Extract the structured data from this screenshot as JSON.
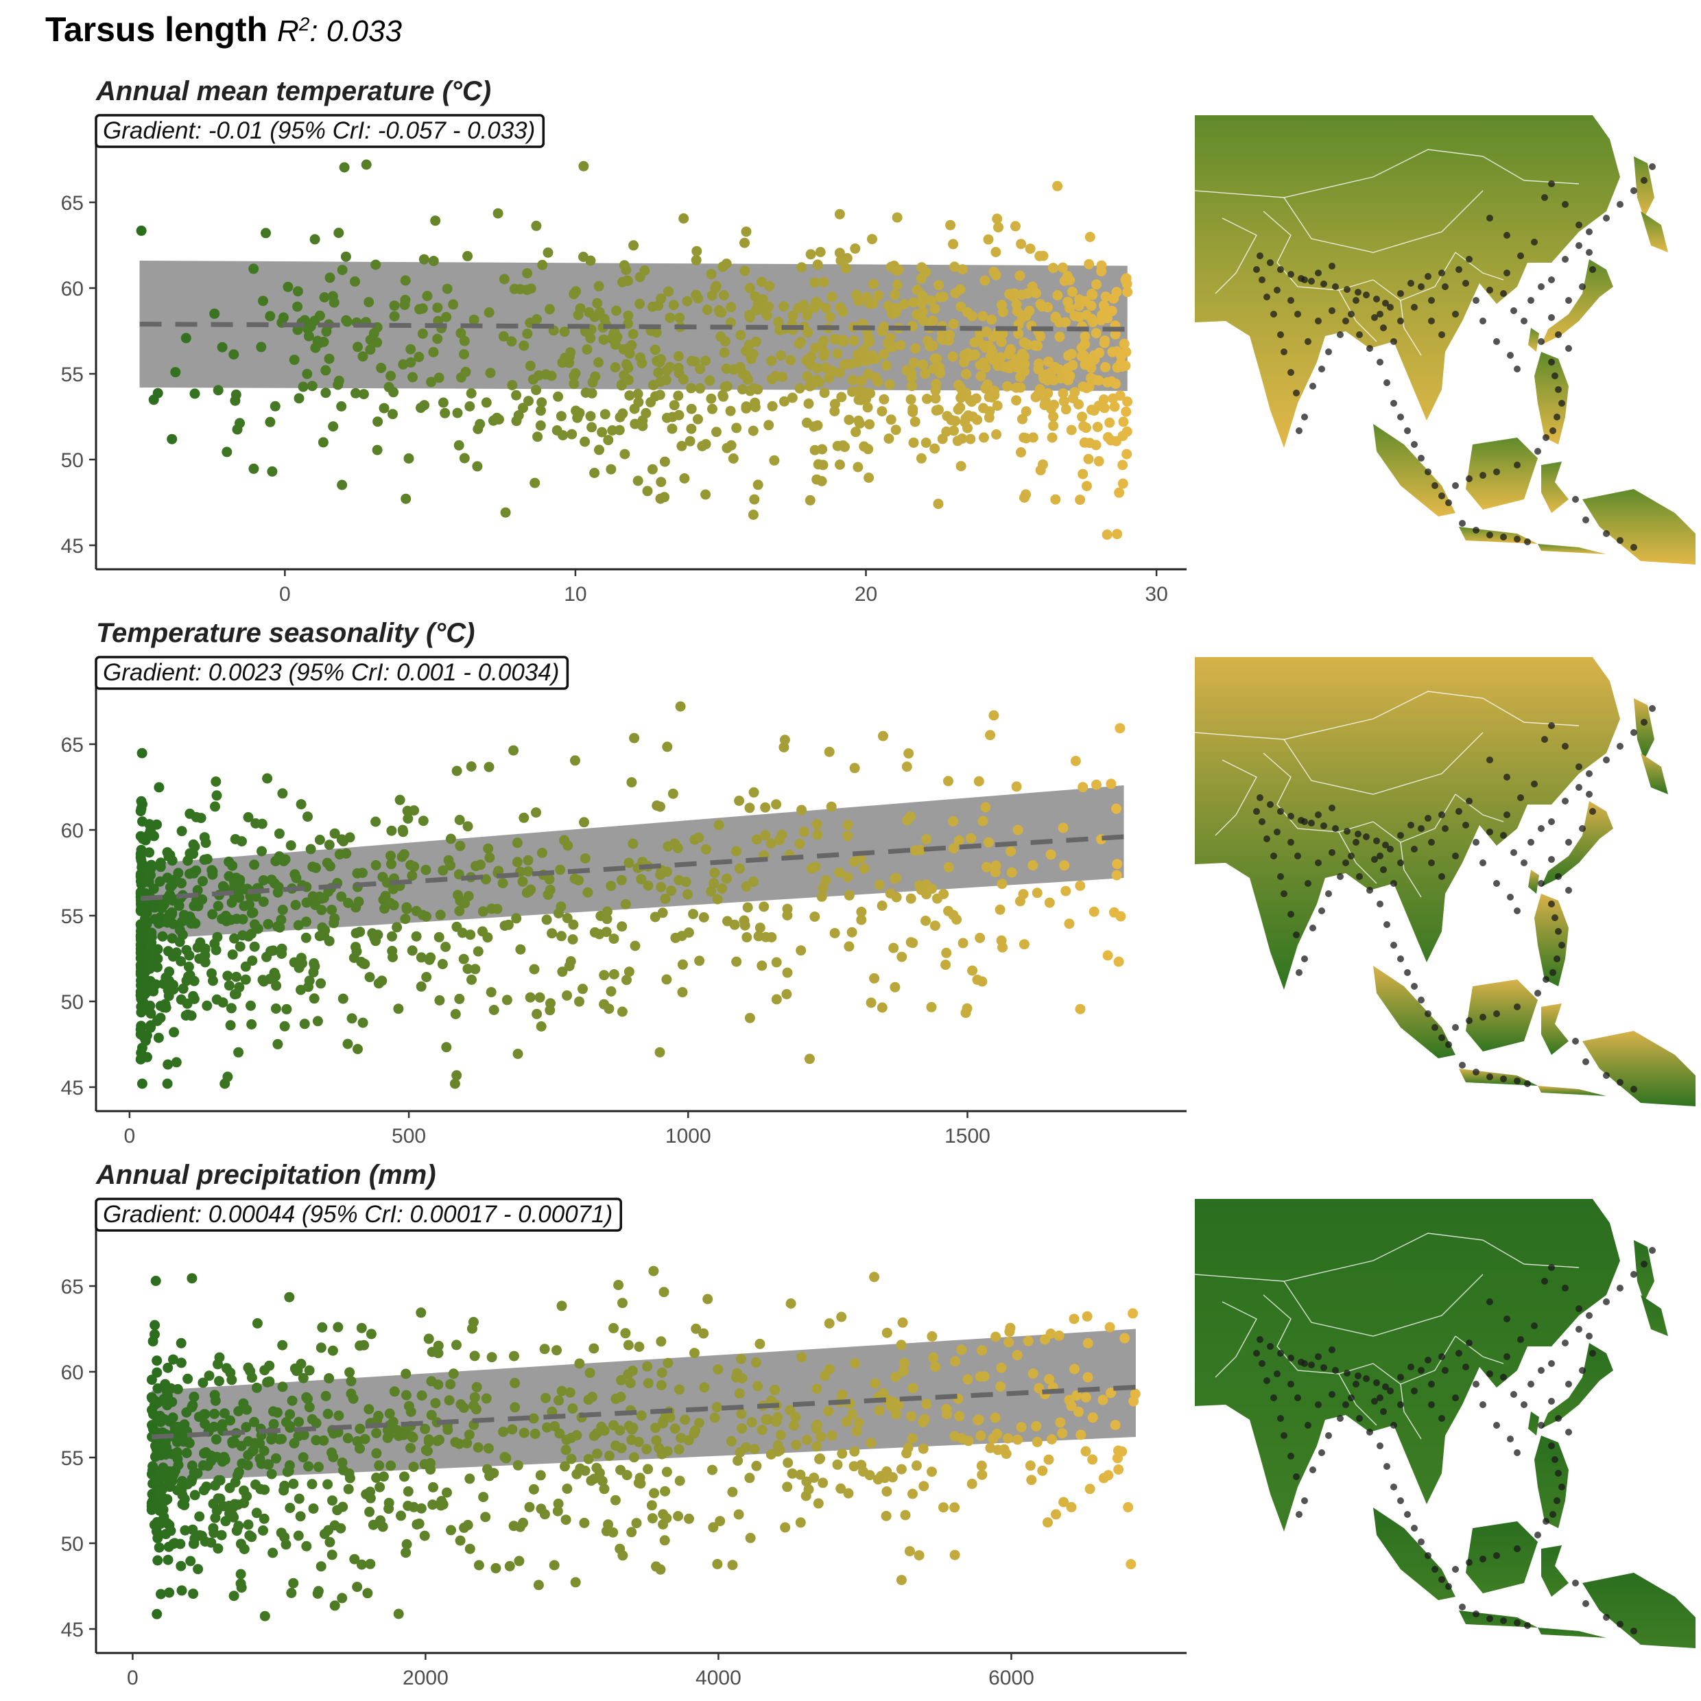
{
  "figure": {
    "title": "Tarsus length",
    "r2_label": "R",
    "r2_sup": "2",
    "r2_value": ": 0.033"
  },
  "chart_data": [
    {
      "type": "scatter",
      "title": "Annual mean temperature (°C)",
      "annotation": "Gradient: -0.01 (95% CrI: -0.057 - 0.033)",
      "xlim": [
        -6.5,
        30.8
      ],
      "ylim": [
        44,
        68
      ],
      "x_ticks": [
        0,
        10,
        20,
        30
      ],
      "y_ticks": [
        45,
        50,
        55,
        60,
        65
      ],
      "x_range": [
        -5,
        29
      ],
      "fit": {
        "x": [
          -5,
          29
        ],
        "y": [
          57.9,
          57.6
        ]
      },
      "ribbon": {
        "lower": [
          54.2,
          54.0
        ],
        "upper": [
          61.6,
          61.3
        ]
      },
      "colors": {
        "low": "#2b6e1e",
        "high": "#e6b843"
      },
      "points_n": 950,
      "points_seed": 11,
      "x_skew": 0.55,
      "y_sd": 3.6
    },
    {
      "type": "scatter",
      "title": "Temperature seasonality (°C)",
      "annotation": "Gradient: 0.0023 (95% CrI: 0.001 - 0.0034)",
      "xlim": [
        -60,
        1880
      ],
      "ylim": [
        44,
        68
      ],
      "x_ticks": [
        0,
        500,
        1000,
        1500
      ],
      "y_ticks": [
        45,
        50,
        55,
        60,
        65
      ],
      "x_range": [
        20,
        1780
      ],
      "fit": {
        "x": [
          20,
          1780
        ],
        "y": [
          56.0,
          59.6
        ]
      },
      "ribbon": {
        "lower": [
          53.6,
          57.2
        ],
        "upper": [
          58.0,
          62.6
        ]
      },
      "colors": {
        "low": "#2b6e1e",
        "high": "#e6b843"
      },
      "points_n": 900,
      "points_seed": 23,
      "x_skew": -1.6,
      "y_sd": 3.6
    },
    {
      "type": "scatter",
      "title": "Annual precipitation (mm)",
      "annotation": "Gradient: 0.00044 (95% CrI: 0.00017 - 0.00071)",
      "xlim": [
        -250,
        7150
      ],
      "ylim": [
        44,
        68
      ],
      "x_ticks": [
        0,
        2000,
        4000,
        6000
      ],
      "y_ticks": [
        45,
        50,
        55,
        60,
        65
      ],
      "x_range": [
        130,
        6850
      ],
      "fit": {
        "x": [
          130,
          6850
        ],
        "y": [
          56.2,
          59.1
        ]
      },
      "ribbon": {
        "lower": [
          53.6,
          56.2
        ],
        "upper": [
          58.9,
          62.5
        ]
      },
      "colors": {
        "low": "#2b6e1e",
        "high": "#e6b843"
      },
      "points_n": 900,
      "points_seed": 37,
      "x_skew": -0.9,
      "y_sd": 3.6
    }
  ],
  "maps": [
    {
      "name": "annual-mean-temperature-map",
      "color_north": "#5f8a2a",
      "color_south": "#e2b848"
    },
    {
      "name": "temperature-seasonality-map",
      "color_north": "#d8b24a",
      "color_south": "#2f7420"
    },
    {
      "name": "annual-precipitation-map",
      "color_north": "#2a6e1f",
      "color_south": "#3d7d24"
    }
  ]
}
